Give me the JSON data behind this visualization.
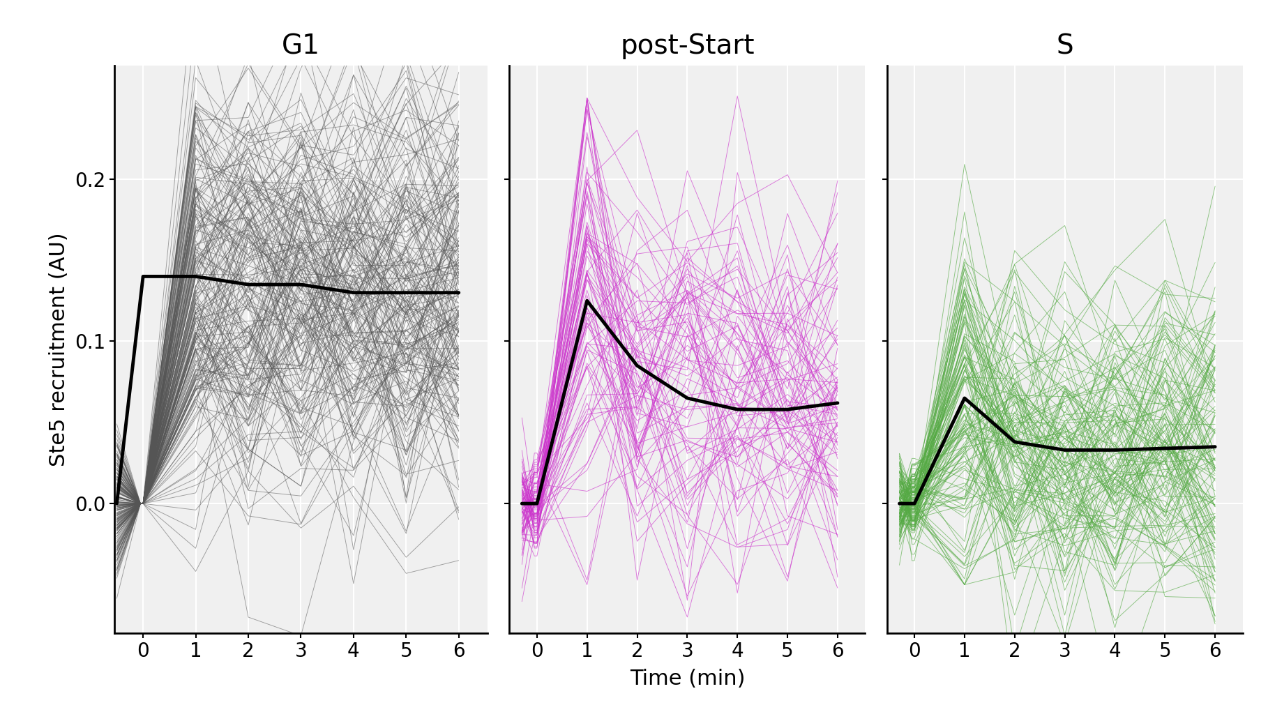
{
  "panels": [
    "G1",
    "post-Start",
    "S"
  ],
  "panel_colors": [
    "#555555",
    "#CC33CC",
    "#55AA44"
  ],
  "mean_color": "#000000",
  "background_color": "#F0F0F0",
  "grid_color": "#FFFFFF",
  "ylabel": "Ste5 recruitment (AU)",
  "xlabel": "Time (min)",
  "ylim": [
    -0.08,
    0.27
  ],
  "yticks": [
    0.0,
    0.1,
    0.2
  ],
  "xlim_g1": [
    -0.55,
    6.55
  ],
  "xlim_ps": [
    -0.55,
    6.55
  ],
  "xlim_s": [
    -0.55,
    6.55
  ],
  "xticks": [
    0,
    1,
    2,
    3,
    4,
    5,
    6
  ],
  "n_lines_g1": 200,
  "n_lines_ps": 80,
  "n_lines_s": 130,
  "mean_lw": 3.5,
  "line_lw": 0.65,
  "line_alpha_g1": 0.55,
  "line_alpha_ps": 0.65,
  "line_alpha_s": 0.65,
  "seed": 42,
  "title_fontsize": 28,
  "label_fontsize": 22,
  "tick_fontsize": 20,
  "mean_g1": [
    0.0,
    0.14,
    0.14,
    0.135,
    0.135,
    0.13,
    0.13,
    0.13
  ],
  "mean_ps": [
    0.0,
    0.0,
    0.125,
    0.085,
    0.065,
    0.058,
    0.058,
    0.062
  ],
  "mean_s": [
    0.0,
    0.0,
    0.065,
    0.038,
    0.033,
    0.033,
    0.034,
    0.035
  ],
  "t_g1": [
    -0.5,
    0,
    1,
    2,
    3,
    4,
    5,
    6
  ],
  "t_ps": [
    -0.3,
    0,
    1,
    2,
    3,
    4,
    5,
    6
  ],
  "t_s": [
    -0.3,
    0,
    1,
    2,
    3,
    4,
    5,
    6
  ]
}
